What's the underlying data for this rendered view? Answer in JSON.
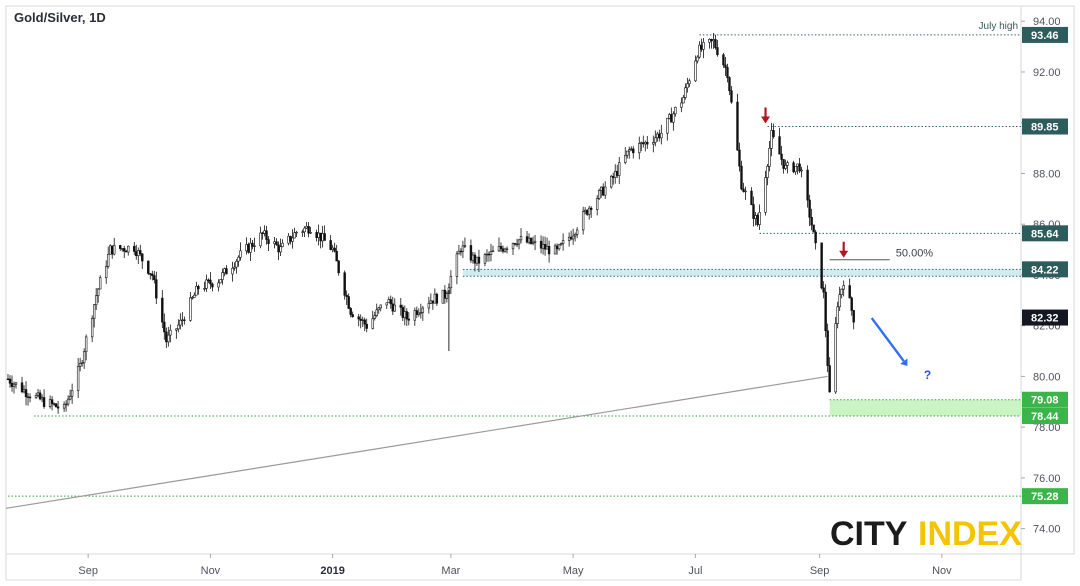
{
  "chart_data": {
    "type": "candlestick",
    "title": "Gold/Silver, 1D",
    "ylim": [
      73.0,
      94.6
    ],
    "y_ticks": [
      "94.00",
      "92.00",
      "90.00",
      "88.00",
      "86.00",
      "84.00",
      "82.00",
      "80.00",
      "78.00",
      "76.00",
      "74.00"
    ],
    "x_ticks": [
      {
        "label": "Sep",
        "bold": false
      },
      {
        "label": "Nov",
        "bold": false
      },
      {
        "label": "2019",
        "bold": true
      },
      {
        "label": "Mar",
        "bold": false
      },
      {
        "label": "May",
        "bold": false
      },
      {
        "label": "Jul",
        "bold": false
      },
      {
        "label": "Sep",
        "bold": false
      },
      {
        "label": "Nov",
        "bold": false
      }
    ],
    "price_series": [
      [
        "2018-07-23",
        79.9
      ],
      [
        "2018-08-01",
        79.4
      ],
      [
        "2018-08-10",
        79.0
      ],
      [
        "2018-08-20",
        78.7
      ],
      [
        "2018-08-28",
        80.4
      ],
      [
        "2018-09-05",
        83.2
      ],
      [
        "2018-09-12",
        85.0
      ],
      [
        "2018-09-24",
        85.1
      ],
      [
        "2018-10-03",
        84.0
      ],
      [
        "2018-10-10",
        81.4
      ],
      [
        "2018-10-17",
        82.1
      ],
      [
        "2018-10-26",
        83.5
      ],
      [
        "2018-11-05",
        83.8
      ],
      [
        "2018-11-15",
        84.7
      ],
      [
        "2018-11-27",
        85.6
      ],
      [
        "2018-12-06",
        85.0
      ],
      [
        "2018-12-14",
        85.7
      ],
      [
        "2018-12-21",
        85.9
      ],
      [
        "2019-01-01",
        85.0
      ],
      [
        "2019-01-10",
        82.6
      ],
      [
        "2019-01-18",
        82.0
      ],
      [
        "2019-01-28",
        83.0
      ],
      [
        "2019-02-07",
        82.3
      ],
      [
        "2019-02-18",
        83.0
      ],
      [
        "2019-02-26",
        83.2
      ],
      [
        "2019-03-06",
        85.1
      ],
      [
        "2019-03-14",
        84.5
      ],
      [
        "2019-03-25",
        85.0
      ],
      [
        "2019-04-03",
        85.4
      ],
      [
        "2019-04-12",
        85.2
      ],
      [
        "2019-04-23",
        84.9
      ],
      [
        "2019-05-01",
        85.7
      ],
      [
        "2019-05-10",
        86.8
      ],
      [
        "2019-05-20",
        87.7
      ],
      [
        "2019-05-29",
        88.9
      ],
      [
        "2019-06-06",
        89.2
      ],
      [
        "2019-06-14",
        89.6
      ],
      [
        "2019-06-25",
        91.0
      ],
      [
        "2019-07-02",
        92.8
      ],
      [
        "2019-07-10",
        93.2
      ],
      [
        "2019-07-17",
        92.0
      ],
      [
        "2019-07-24",
        87.6
      ],
      [
        "2019-08-01",
        86.0
      ],
      [
        "2019-08-08",
        89.5
      ],
      [
        "2019-08-15",
        88.2
      ],
      [
        "2019-08-22",
        88.3
      ],
      [
        "2019-08-28",
        86.0
      ],
      [
        "2019-09-03",
        83.2
      ],
      [
        "2019-09-06",
        79.2
      ],
      [
        "2019-09-10",
        82.9
      ],
      [
        "2019-09-13",
        83.8
      ],
      [
        "2019-09-18",
        82.32
      ]
    ],
    "current_price": "82.32",
    "levels": [
      {
        "label": "93.46",
        "value": 93.46,
        "note": "July high",
        "style": "teal-dotted"
      },
      {
        "label": "89.85",
        "value": 89.85,
        "note": "",
        "style": "teal-dotted"
      },
      {
        "label": "85.64",
        "value": 85.64,
        "note": "",
        "style": "teal-dotted"
      },
      {
        "label": "84.22",
        "value": 84.22,
        "note": "",
        "style": "teal-zone"
      },
      {
        "label": "79.08",
        "value": 79.08,
        "note": "",
        "style": "green-zone"
      },
      {
        "label": "78.44",
        "value": 78.44,
        "note": "",
        "style": "green-dotted"
      },
      {
        "label": "75.28",
        "value": 75.28,
        "note": "",
        "style": "green-dotted"
      }
    ],
    "fib_label": "50.00%",
    "question_mark": "?",
    "logo": {
      "part1": "CITY",
      "part2": "INDEX"
    },
    "colors": {
      "teal_badge": "#2d5c5c",
      "green_badge": "#3bb44a",
      "price_badge": "#131722",
      "red_arrow": "#b0171f",
      "blue_arrow": "#2f6ff2",
      "zone_teal": "#a9dde3",
      "zone_green": "#b8f0b0",
      "logo_yellow": "#f4c400"
    },
    "grid": false
  }
}
